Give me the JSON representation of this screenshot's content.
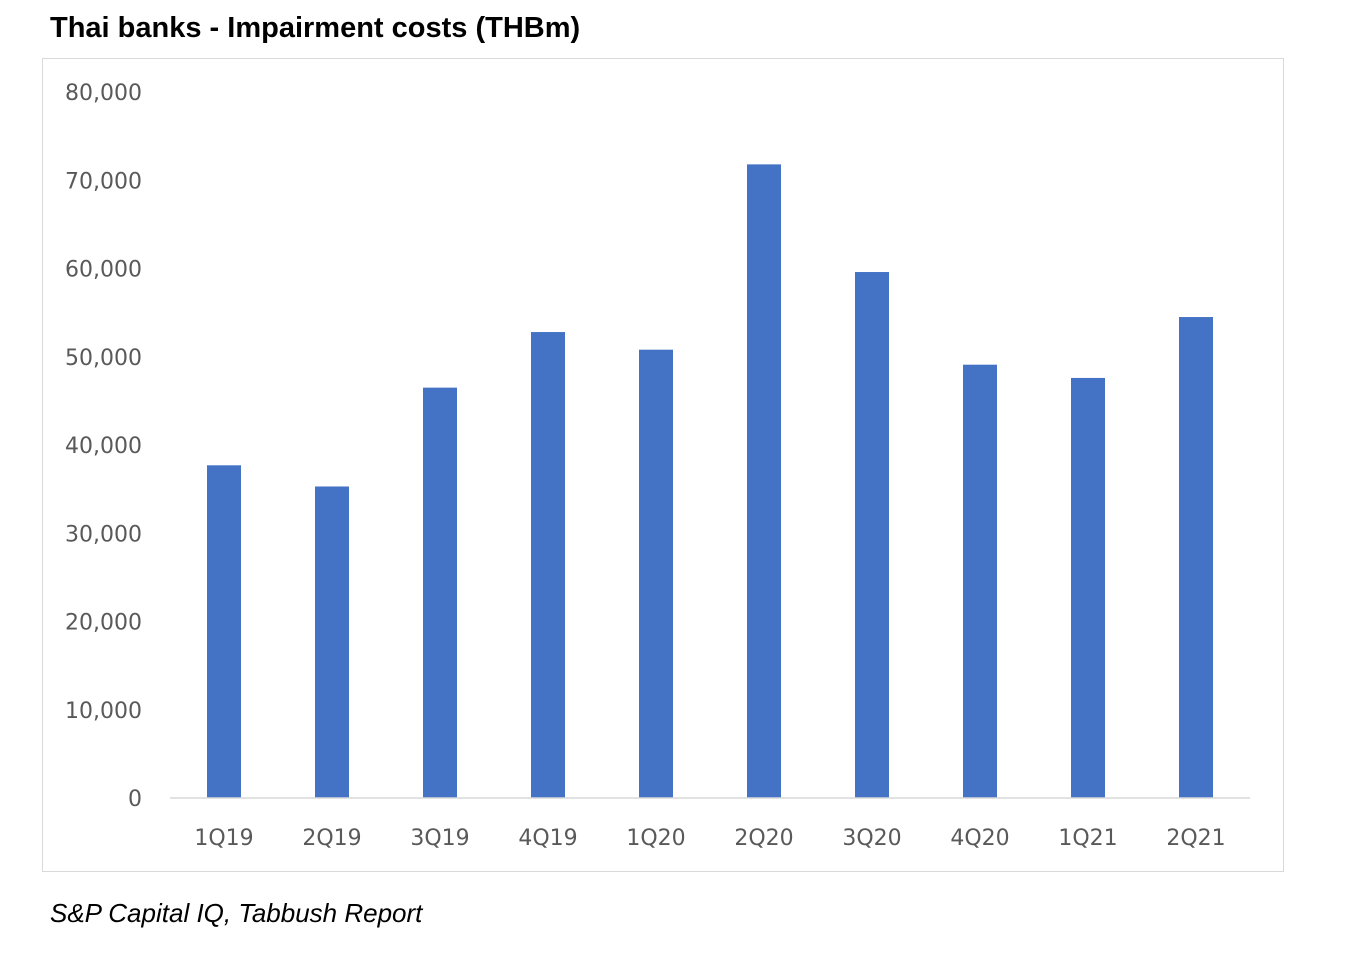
{
  "chart_data": {
    "type": "bar",
    "title": "Thai banks - Impairment costs (THBm)",
    "categories": [
      "1Q19",
      "2Q19",
      "3Q19",
      "4Q19",
      "1Q20",
      "2Q20",
      "3Q20",
      "4Q20",
      "1Q21",
      "2Q21"
    ],
    "series": [
      {
        "values": [
          37700,
          35300,
          46500,
          52800,
          50800,
          71800,
          59600,
          49100,
          47600,
          54500
        ]
      }
    ],
    "ylim": [
      0,
      80000
    ],
    "yticks": [
      0,
      10000,
      20000,
      30000,
      40000,
      50000,
      60000,
      70000,
      80000
    ],
    "ytick_labels": [
      "0",
      "10,000",
      "20,000",
      "30,000",
      "40,000",
      "50,000",
      "60,000",
      "70,000",
      "80,000"
    ],
    "grid": false,
    "bar_color": "#4472c4",
    "source": "S&P Capital IQ, Tabbush Report"
  }
}
